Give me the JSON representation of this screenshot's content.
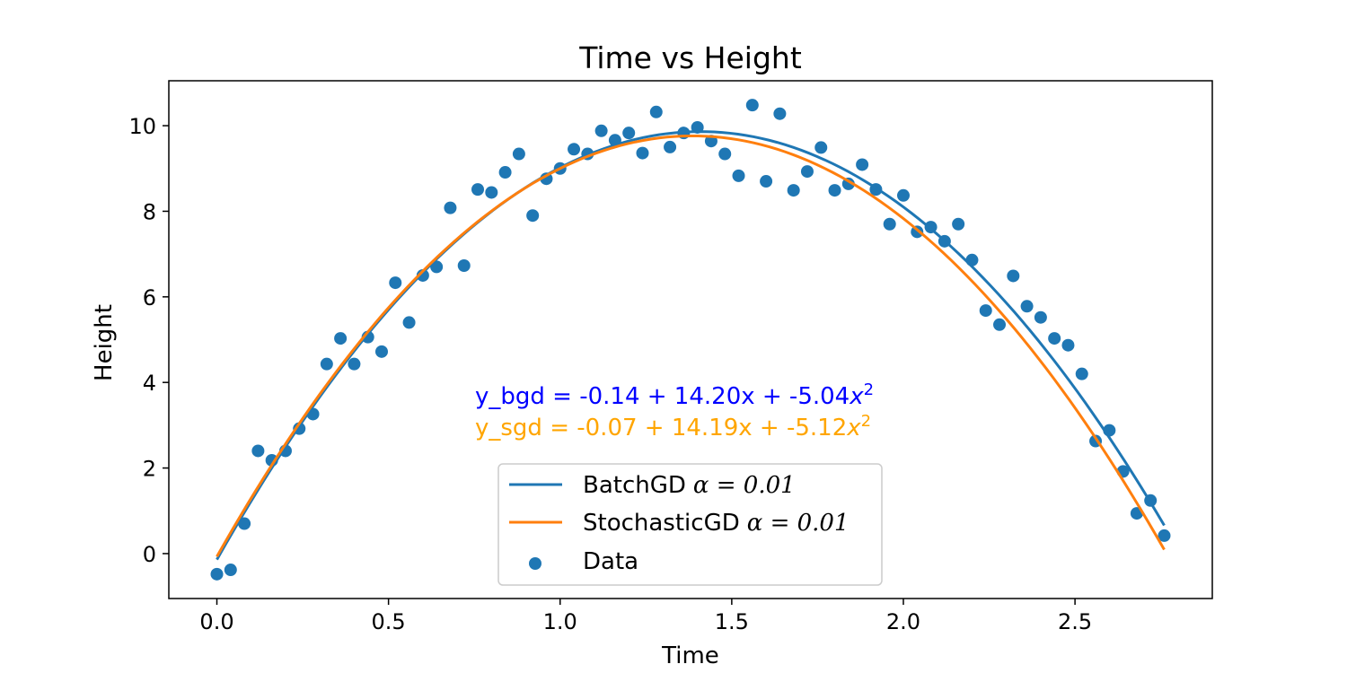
{
  "chart_data": {
    "type": "scatter",
    "title": "Time vs Height",
    "xlabel": "Time",
    "ylabel": "Height",
    "xlim": [
      -0.14,
      2.9
    ],
    "ylim": [
      -1.05,
      11.05
    ],
    "xticks": [
      0.0,
      0.5,
      1.0,
      1.5,
      2.0,
      2.5
    ],
    "xtick_labels": [
      "0.0",
      "0.5",
      "1.0",
      "1.5",
      "2.0",
      "2.5"
    ],
    "yticks": [
      0,
      2,
      4,
      6,
      8,
      10
    ],
    "ytick_labels": [
      "0",
      "2",
      "4",
      "6",
      "8",
      "10"
    ],
    "grid": false,
    "legend_position": "lower center",
    "series": [
      {
        "name": "BatchGD α = 0.01",
        "type": "line",
        "color": "#1f77b4",
        "coefficients": [
          -0.14,
          14.2,
          -5.04
        ],
        "x_range": [
          0.0,
          2.76
        ]
      },
      {
        "name": "StochasticGD α = 0.01",
        "type": "line",
        "color": "#ff7f0e",
        "coefficients": [
          -0.07,
          14.19,
          -5.12
        ],
        "x_range": [
          0.0,
          2.76
        ]
      },
      {
        "name": "Data",
        "type": "scatter",
        "color": "#1f77b4",
        "x": [
          0.0,
          0.04,
          0.08,
          0.12,
          0.16,
          0.2,
          0.24,
          0.28,
          0.32,
          0.36,
          0.4,
          0.44,
          0.48,
          0.52,
          0.56,
          0.6,
          0.64,
          0.68,
          0.72,
          0.76,
          0.8,
          0.84,
          0.88,
          0.92,
          0.96,
          1.0,
          1.04,
          1.08,
          1.12,
          1.16,
          1.2,
          1.24,
          1.28,
          1.32,
          1.36,
          1.4,
          1.44,
          1.48,
          1.52,
          1.56,
          1.6,
          1.64,
          1.68,
          1.72,
          1.76,
          1.8,
          1.84,
          1.88,
          1.92,
          1.96,
          2.0,
          2.04,
          2.08,
          2.12,
          2.16,
          2.2,
          2.24,
          2.28,
          2.32,
          2.36,
          2.4,
          2.44,
          2.48,
          2.52,
          2.56,
          2.6,
          2.64,
          2.68,
          2.72,
          2.76
        ],
        "y": [
          -0.48,
          -0.38,
          0.7,
          2.4,
          2.18,
          2.4,
          2.92,
          3.26,
          4.43,
          5.03,
          4.43,
          5.06,
          4.72,
          6.33,
          5.4,
          6.5,
          6.7,
          8.08,
          6.73,
          8.51,
          8.44,
          8.91,
          9.34,
          7.9,
          8.76,
          9.0,
          9.45,
          9.34,
          9.88,
          9.66,
          9.83,
          9.36,
          10.32,
          9.5,
          9.83,
          9.96,
          9.64,
          9.34,
          8.83,
          10.48,
          8.7,
          10.28,
          8.49,
          8.93,
          9.49,
          8.49,
          8.64,
          9.09,
          8.51,
          7.7,
          8.37,
          7.52,
          7.63,
          7.3,
          7.7,
          6.86,
          5.68,
          5.35,
          6.49,
          5.78,
          5.52,
          5.03,
          4.87,
          4.2,
          2.63,
          2.88,
          1.92,
          0.94,
          1.24,
          0.42
        ]
      }
    ],
    "annotations": [
      {
        "prefix": "y_bgd = -0.14 + 14.20x + -5.04",
        "var": "x",
        "sup": "2",
        "color": "#0000ff"
      },
      {
        "prefix": "y_sgd = -0.07 + 14.19x + -5.12",
        "var": "x",
        "sup": "2",
        "color": "#ffa500"
      }
    ],
    "legend": [
      {
        "kind": "line",
        "label": "BatchGD",
        "math": "α = 0.01",
        "color": "#1f77b4"
      },
      {
        "kind": "line",
        "label": "StochasticGD",
        "math": "α = 0.01",
        "color": "#ff7f0e"
      },
      {
        "kind": "marker",
        "label": "Data",
        "math": "",
        "color": "#1f77b4"
      }
    ]
  }
}
